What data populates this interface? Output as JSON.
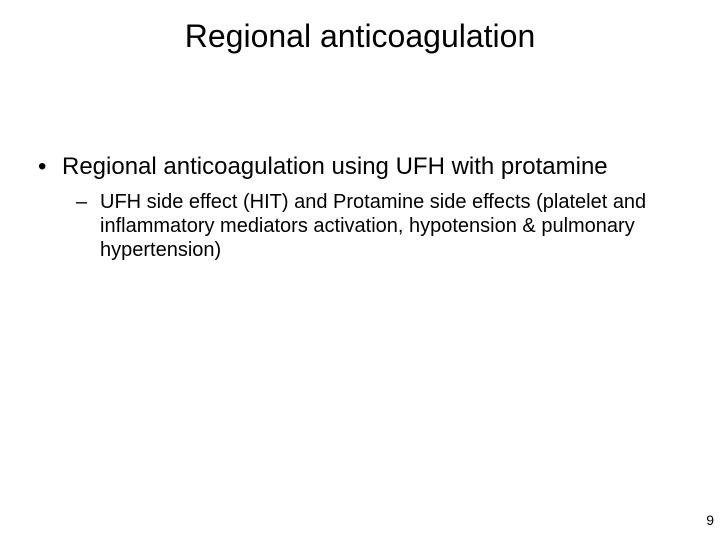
{
  "slide": {
    "title": "Regional anticoagulation",
    "bullets": [
      {
        "level": 1,
        "marker": "•",
        "text": "Regional anticoagulation using UFH with protamine"
      },
      {
        "level": 2,
        "marker": "–",
        "text": "UFH side effect (HIT) and Protamine side effects (platelet and inflammatory mediators activation, hypotension & pulmonary hypertension)"
      }
    ],
    "page_number": "9"
  },
  "styling": {
    "background_color": "#ffffff",
    "text_color": "#000000",
    "title_fontsize": 32,
    "l1_fontsize": 24,
    "l2_fontsize": 20,
    "pagenum_fontsize": 14,
    "font_family": "Arial"
  }
}
